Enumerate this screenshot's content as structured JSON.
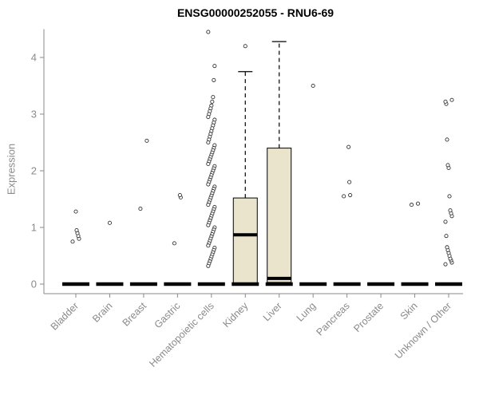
{
  "chart_data": {
    "type": "boxplot",
    "title": "ENSG00000252055 - RNU6-69",
    "ylabel": "Expression",
    "ylim": [
      0,
      4.5
    ],
    "yticks": [
      0,
      1,
      2,
      3,
      4
    ],
    "categories": [
      "Bladder",
      "Brain",
      "Breast",
      "Gastric",
      "Hematopoietic cells",
      "Kidney",
      "Liver",
      "Lung",
      "Pancreas",
      "Prostate",
      "Skin",
      "Unknown / Other"
    ],
    "boxes": [
      {
        "category": "Bladder",
        "q1": 0,
        "median": 0,
        "q3": 0,
        "whisker_low": 0,
        "whisker_high": 0,
        "outliers": [
          0.75,
          0.8,
          0.85,
          0.9,
          0.95,
          1.28
        ]
      },
      {
        "category": "Brain",
        "q1": 0,
        "median": 0,
        "q3": 0,
        "whisker_low": 0,
        "whisker_high": 0,
        "outliers": [
          1.08
        ]
      },
      {
        "category": "Breast",
        "q1": 0,
        "median": 0,
        "q3": 0,
        "whisker_low": 0,
        "whisker_high": 0,
        "outliers": [
          1.33,
          2.53
        ]
      },
      {
        "category": "Gastric",
        "q1": 0,
        "median": 0,
        "q3": 0,
        "whisker_low": 0,
        "whisker_high": 0,
        "outliers": [
          0.72,
          1.53,
          1.57
        ]
      },
      {
        "category": "Hematopoietic cells",
        "q1": 0,
        "median": 0,
        "q3": 0,
        "whisker_low": 0,
        "whisker_high": 0,
        "outliers": [
          4.45,
          3.85,
          3.6,
          3.3,
          3.22,
          3.15,
          3.1,
          3.05,
          3.0,
          2.95,
          2.9,
          2.85,
          2.8,
          2.75,
          2.7,
          2.65,
          2.6,
          2.55,
          2.5,
          2.45,
          2.4,
          2.36,
          2.32,
          2.28,
          2.24,
          2.2,
          2.16,
          2.12,
          2.08,
          2.04,
          2.0,
          1.96,
          1.92,
          1.88,
          1.84,
          1.8,
          1.76,
          1.72,
          1.68,
          1.64,
          1.6,
          1.56,
          1.52,
          1.48,
          1.44,
          1.4,
          1.36,
          1.32,
          1.28,
          1.24,
          1.2,
          1.16,
          1.12,
          1.08,
          1.04,
          1.0,
          0.96,
          0.92,
          0.88,
          0.84,
          0.8,
          0.76,
          0.72,
          0.68,
          0.64,
          0.6,
          0.56,
          0.52,
          0.48,
          0.44,
          0.4,
          0.36,
          0.32
        ]
      },
      {
        "category": "Kidney",
        "q1": 0.02,
        "median": 0.87,
        "q3": 1.52,
        "whisker_low": 0.02,
        "whisker_high": 3.75,
        "outliers": [
          4.2
        ]
      },
      {
        "category": "Liver",
        "q1": 0.03,
        "median": 0.1,
        "q3": 2.4,
        "whisker_low": 0.03,
        "whisker_high": 4.28,
        "outliers": []
      },
      {
        "category": "Lung",
        "q1": 0,
        "median": 0,
        "q3": 0,
        "whisker_low": 0,
        "whisker_high": 0,
        "outliers": [
          3.5
        ]
      },
      {
        "category": "Pancreas",
        "q1": 0,
        "median": 0,
        "q3": 0,
        "whisker_low": 0,
        "whisker_high": 0,
        "outliers": [
          1.55,
          1.57,
          1.8,
          2.42
        ]
      },
      {
        "category": "Prostate",
        "q1": 0,
        "median": 0,
        "q3": 0,
        "whisker_low": 0,
        "whisker_high": 0,
        "outliers": []
      },
      {
        "category": "Skin",
        "q1": 0,
        "median": 0,
        "q3": 0,
        "whisker_low": 0,
        "whisker_high": 0,
        "outliers": [
          1.4,
          1.42
        ]
      },
      {
        "category": "Unknown / Other",
        "q1": 0,
        "median": 0,
        "q3": 0,
        "whisker_low": 0,
        "whisker_high": 0,
        "outliers": [
          0.35,
          0.38,
          0.42,
          0.45,
          0.5,
          0.55,
          0.6,
          0.65,
          0.85,
          1.1,
          1.2,
          1.25,
          1.3,
          1.55,
          2.05,
          2.1,
          2.55,
          3.18,
          3.22,
          3.25
        ]
      }
    ],
    "colors": {
      "box_fill": "#EBE4CC",
      "box_stroke": "#000000",
      "axis": "#8a8a8a",
      "tick_label": "#8a8a8a",
      "title": "#000000",
      "outlier": "#333333"
    },
    "layout": {
      "grid": false,
      "legend": "none",
      "x_label_rotation": 45
    }
  }
}
